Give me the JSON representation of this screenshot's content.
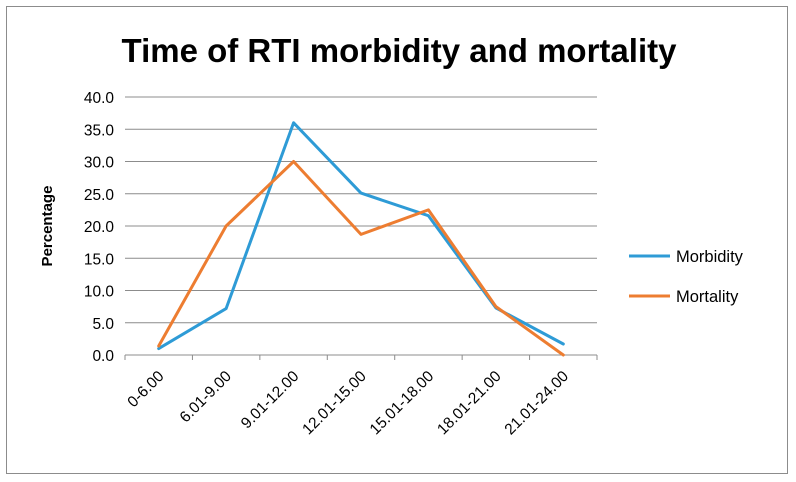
{
  "chart_data": {
    "type": "line",
    "title": "Time of RTI morbidity and mortality",
    "xlabel": "",
    "ylabel": "Percentage",
    "categories": [
      "0-6.00",
      "6.01-9.00",
      "9.01-12.00",
      "12.01-15.00",
      "15.01-18.00",
      "18.01-21.00",
      "21.01-24.00"
    ],
    "yticks": [
      "0.0",
      "5.0",
      "10.0",
      "15.0",
      "20.0",
      "25.0",
      "30.0",
      "35.0",
      "40.0"
    ],
    "ylim": [
      0,
      40
    ],
    "grid": true,
    "legend_position": "right",
    "series": [
      {
        "name": "Morbidity",
        "color": "#2e9bd6",
        "values": [
          1.0,
          7.2,
          36.0,
          25.1,
          21.6,
          7.3,
          1.7
        ]
      },
      {
        "name": "Mortality",
        "color": "#ed7d31",
        "values": [
          1.4,
          20.0,
          30.0,
          18.7,
          22.5,
          7.5,
          0.0
        ]
      }
    ]
  }
}
